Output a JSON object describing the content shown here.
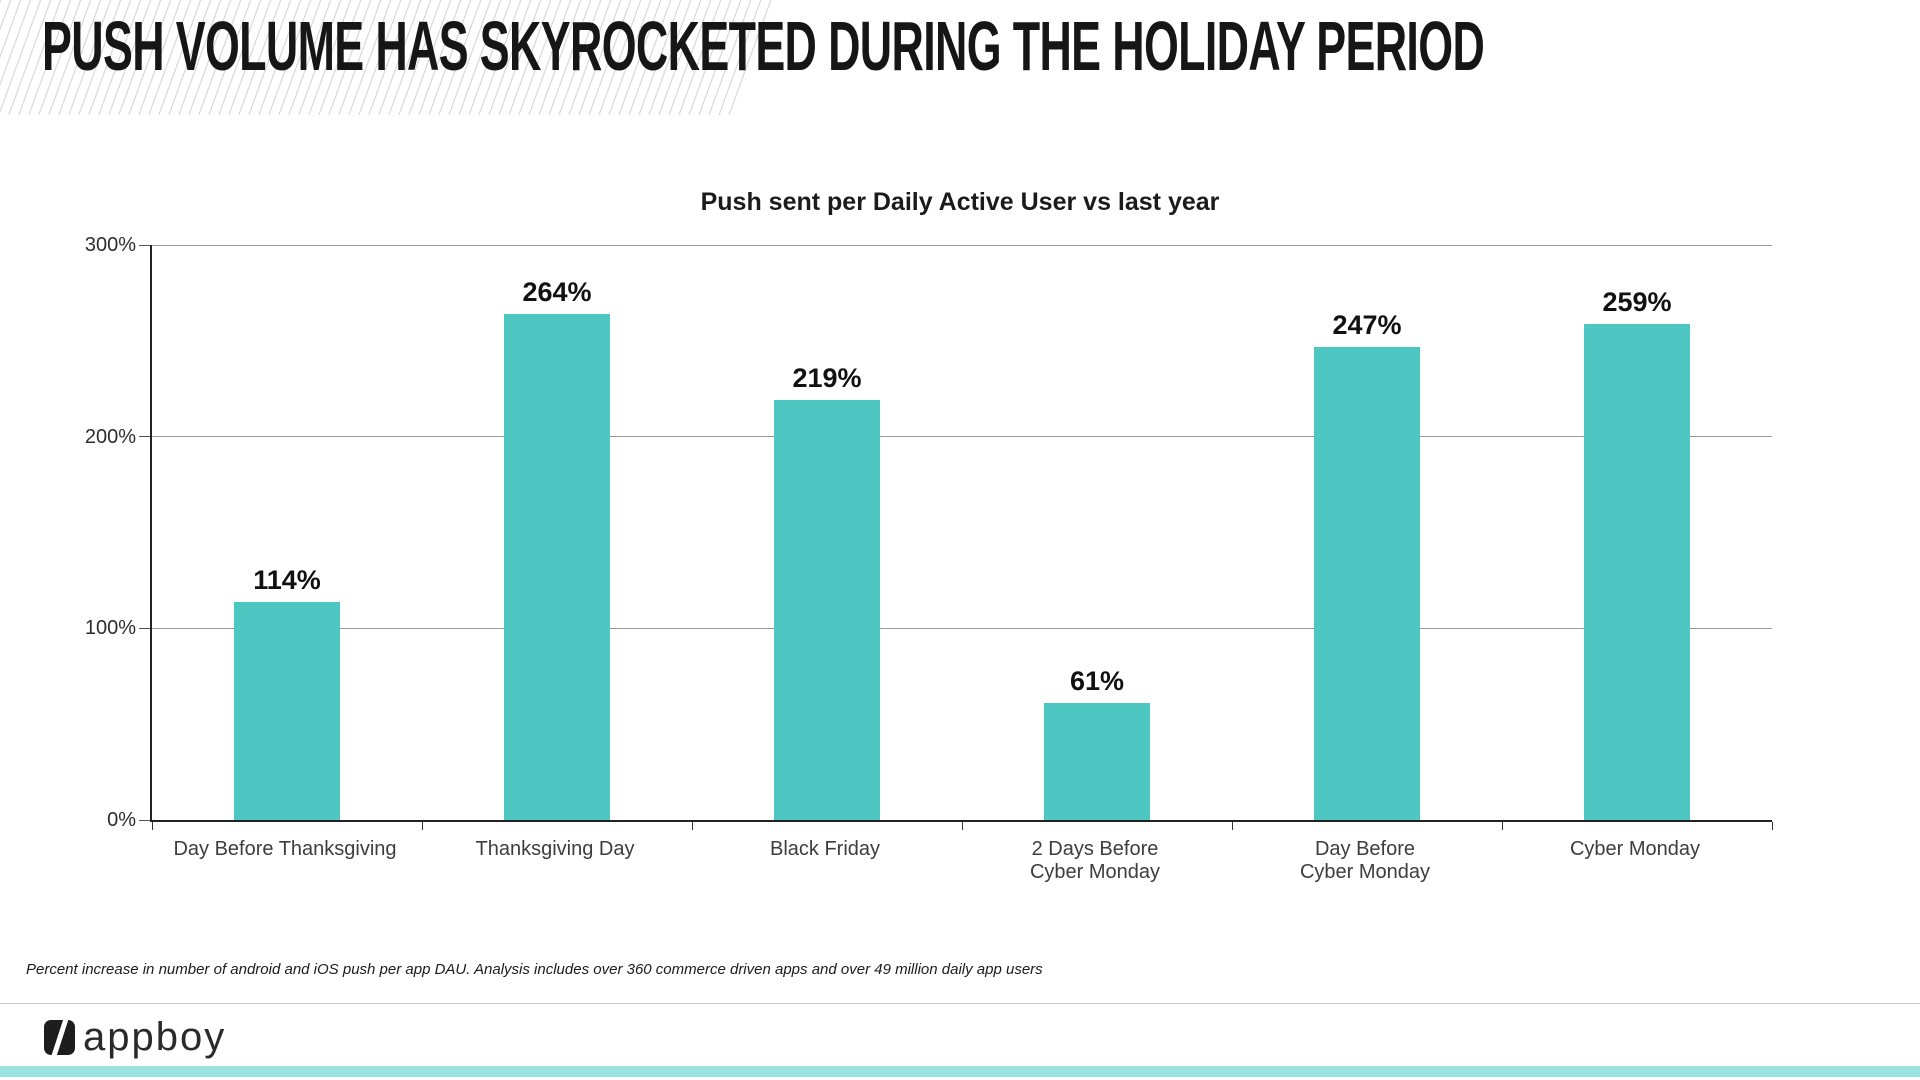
{
  "slide": {
    "title": "PUSH VOLUME HAS SKYROCKETED DURING THE HOLIDAY PERIOD",
    "footnote": "Percent increase in number of android and iOS push per app DAU.  Analysis includes over 360 commerce driven apps and over 49 million daily app users",
    "logo": {
      "text": "appboy",
      "mark": "slash-square-icon"
    }
  },
  "colors": {
    "bar": "#4ec6c2",
    "accent_strip": "#9ce3df",
    "gridline": "#9a9a9a",
    "axis": "#222222",
    "hatch": "#d8d8d8"
  },
  "chart_data": {
    "type": "bar",
    "title": "Push sent per Daily Active User vs last year",
    "categories": [
      "Day Before Thanksgiving",
      "Thanksgiving Day",
      "Black Friday",
      "2 Days Before\nCyber Monday",
      "Day Before\nCyber Monday",
      "Cyber Monday"
    ],
    "values": [
      114,
      264,
      219,
      61,
      247,
      259
    ],
    "value_labels": [
      "114%",
      "264%",
      "219%",
      "61%",
      "247%",
      "259%"
    ],
    "unit": "%",
    "xlabel": "",
    "ylabel": "",
    "ylim": [
      0,
      300
    ],
    "yticks": [
      0,
      100,
      200,
      300
    ],
    "ytick_labels": [
      "0%",
      "100%",
      "200%",
      "300%"
    ],
    "grid": true,
    "legend": false,
    "bar_color": "#4ec6c2"
  }
}
